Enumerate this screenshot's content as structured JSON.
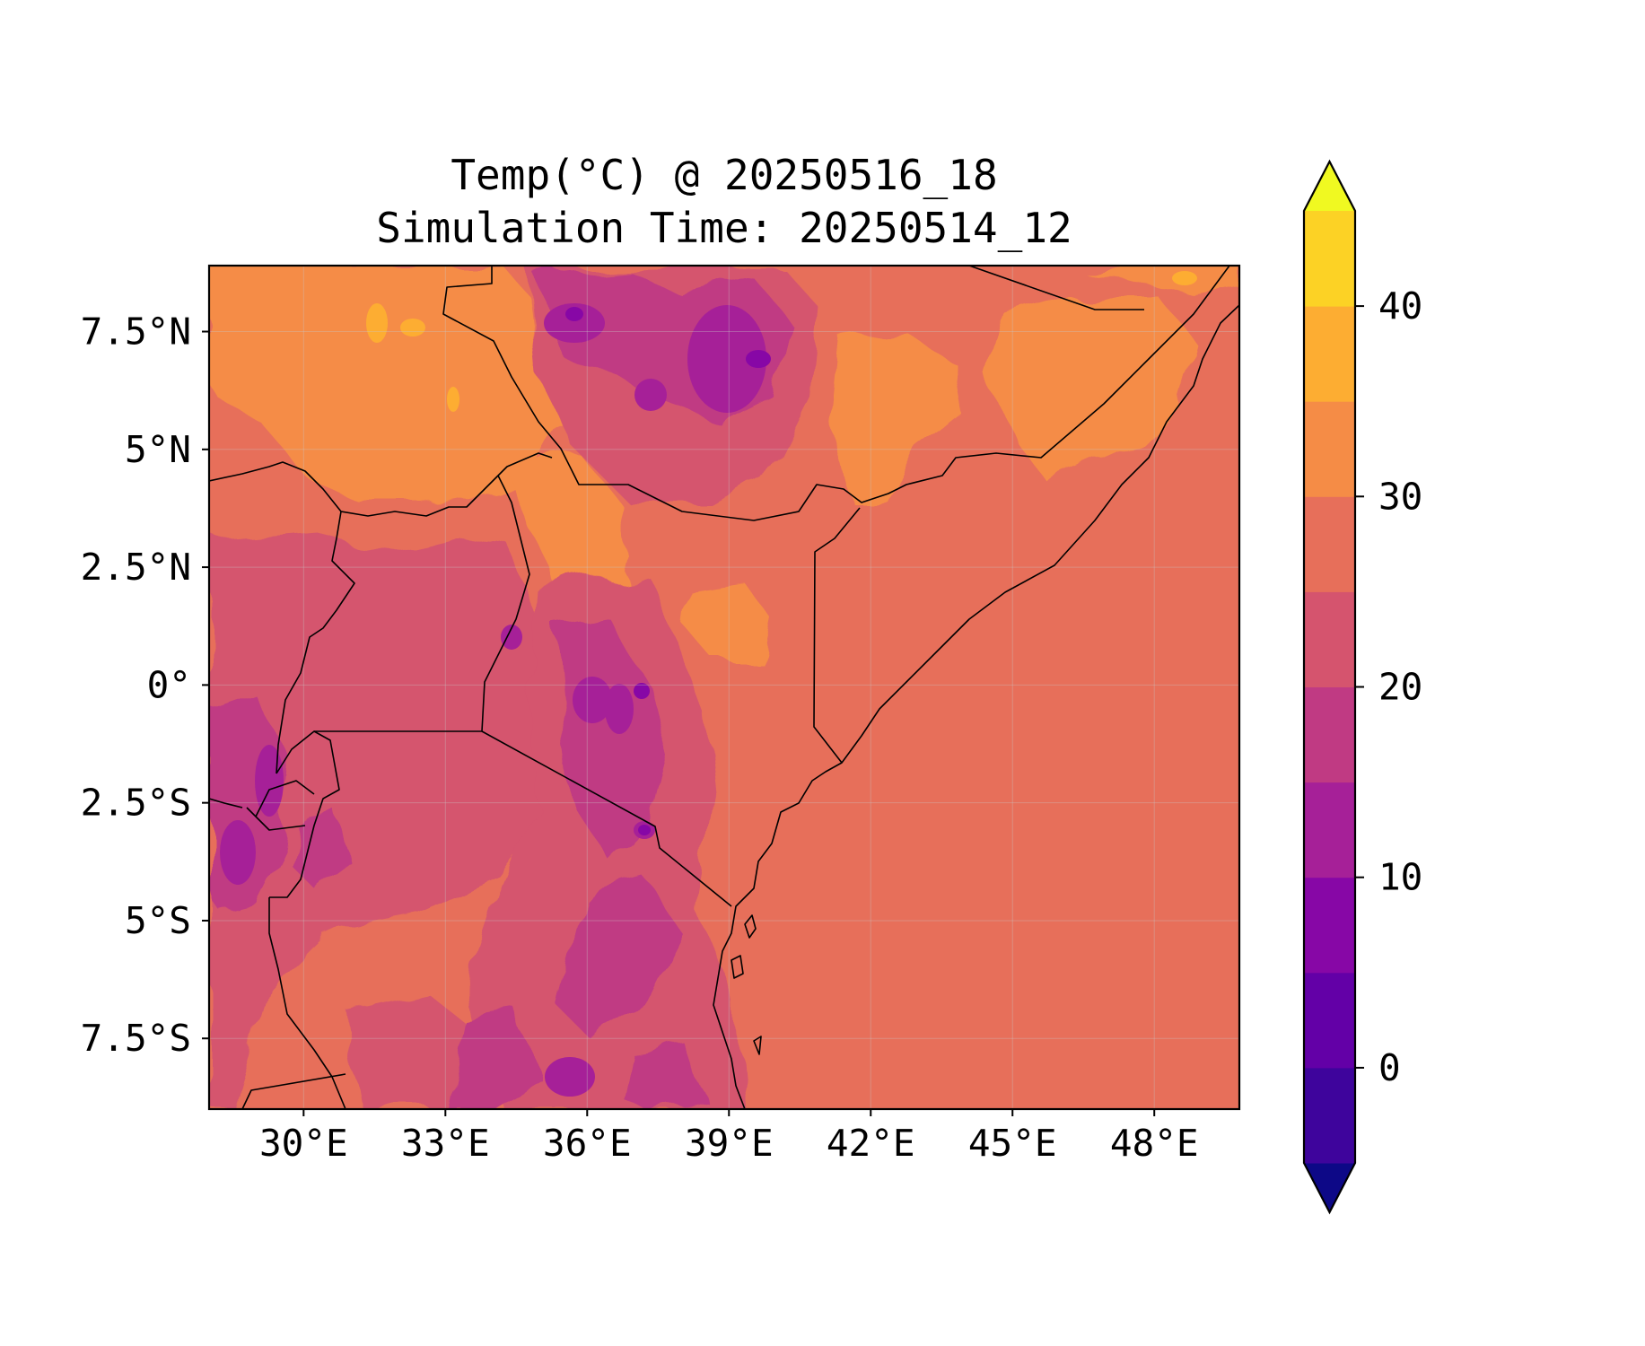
{
  "title": {
    "line1": "Temp(°C) @ 20250516_18",
    "line2": "Simulation Time: 20250514_12"
  },
  "map": {
    "lon_range": [
      28.0,
      49.8
    ],
    "lat_range": [
      -9.0,
      8.9
    ],
    "x_ticks": [
      {
        "lon": 30,
        "label": "30°E"
      },
      {
        "lon": 33,
        "label": "33°E"
      },
      {
        "lon": 36,
        "label": "36°E"
      },
      {
        "lon": 39,
        "label": "39°E"
      },
      {
        "lon": 42,
        "label": "42°E"
      },
      {
        "lon": 45,
        "label": "45°E"
      },
      {
        "lon": 48,
        "label": "48°E"
      }
    ],
    "y_ticks": [
      {
        "lat": 7.5,
        "label": "7.5°N"
      },
      {
        "lat": 5,
        "label": "5°N"
      },
      {
        "lat": 2.5,
        "label": "2.5°N"
      },
      {
        "lat": 0,
        "label": "0°"
      },
      {
        "lat": -2.5,
        "label": "2.5°S"
      },
      {
        "lat": -5,
        "label": "5°S"
      },
      {
        "lat": -7.5,
        "label": "7.5°S"
      }
    ],
    "gridlines": true,
    "field": "temperature at 2 m (°C), filled contours"
  },
  "colorbar": {
    "levels": [
      -5,
      0,
      5,
      10,
      15,
      20,
      25,
      30,
      35,
      40,
      45
    ],
    "colors": [
      "#0d0887",
      "#3e049c",
      "#6300a7",
      "#8707a6",
      "#a62098",
      "#c03a83",
      "#d5546e",
      "#e76f5a",
      "#f58c46",
      "#fdad32",
      "#fcd225",
      "#f0f921"
    ],
    "extend": "both",
    "tick_values": [
      0,
      10,
      20,
      30,
      40
    ],
    "tick_labels": [
      "0",
      "10",
      "20",
      "30",
      "40"
    ]
  },
  "colors": {
    "ocean": "#e76f5a",
    "coast": "#000000"
  }
}
